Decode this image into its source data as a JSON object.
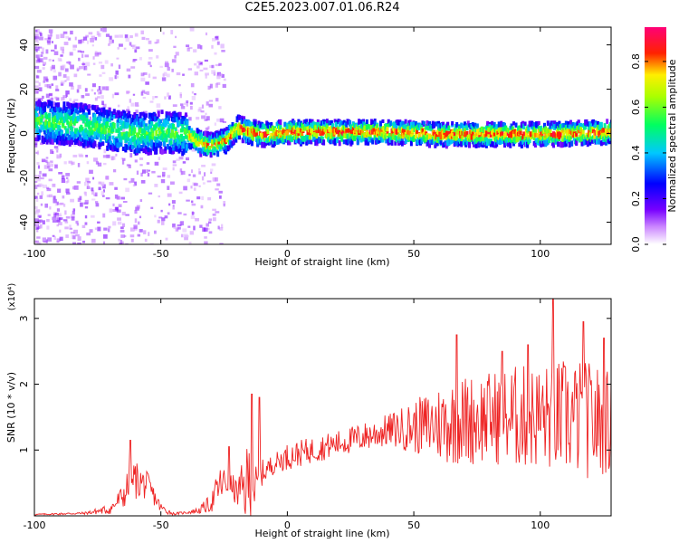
{
  "title": "C2E5.2023.007.01.06.R24",
  "chart_data": [
    {
      "type": "heatmap",
      "xlabel": "Height of straight line (km)",
      "ylabel": "Frequency (Hz)",
      "xlim": [
        -100,
        128
      ],
      "ylim": [
        -50,
        48
      ],
      "x_ticks": [
        "-100",
        "-50",
        "0",
        "50",
        "100"
      ],
      "y_ticks": [
        "40",
        "20",
        "0",
        "-20",
        "-40"
      ],
      "colorbar": {
        "label": "Normalized spectral amplitude",
        "range": [
          0,
          0.95
        ],
        "ticks": [
          "0.0",
          "0.2",
          "0.4",
          "0.6",
          "0.8"
        ],
        "colors": [
          "#ffffff",
          "#9900ff",
          "#0000ff",
          "#00ffff",
          "#00ff00",
          "#ffff00",
          "#ff0000",
          "#ff00aa"
        ]
      },
      "ridge": {
        "x": [
          -100,
          -90,
          -80,
          -70,
          -60,
          -50,
          -40,
          -35,
          -30,
          -25,
          -20,
          -15,
          -10,
          0,
          20,
          40,
          60,
          80,
          100,
          128
        ],
        "y": [
          6,
          5,
          4,
          2,
          0,
          1,
          0,
          -4,
          -5,
          -3,
          3,
          1,
          0,
          1,
          1,
          1,
          0,
          0,
          0,
          1
        ]
      }
    },
    {
      "type": "line",
      "xlabel": "Height of straight line (km)",
      "ylabel": "SNR (10 * v/v)",
      "y_multiplier": "(x10⁴)",
      "xlim": [
        -100,
        128
      ],
      "ylim": [
        0,
        3.3
      ],
      "x_ticks": [
        "-100",
        "-50",
        "0",
        "50",
        "100"
      ],
      "y_ticks": [
        "3",
        "2",
        "1"
      ],
      "series_color": "#ee2222",
      "envelope": {
        "x": [
          -100,
          -80,
          -70,
          -65,
          -62,
          -60,
          -55,
          -50,
          -45,
          -40,
          -35,
          -30,
          -27,
          -25,
          -22,
          -20,
          -17,
          -15,
          -12,
          -10,
          -5,
          0,
          10,
          20,
          30,
          40,
          50,
          60,
          70,
          80,
          90,
          100,
          110,
          120,
          128
        ],
        "mean": [
          0.02,
          0.04,
          0.1,
          0.3,
          0.5,
          0.55,
          0.45,
          0.12,
          0.03,
          0.05,
          0.08,
          0.2,
          0.45,
          0.5,
          0.45,
          0.35,
          0.4,
          0.55,
          0.4,
          0.65,
          0.8,
          0.9,
          1.0,
          1.1,
          1.2,
          1.3,
          1.35,
          1.4,
          1.45,
          1.5,
          1.5,
          1.5,
          1.5,
          1.45,
          1.4
        ],
        "amp": [
          0.01,
          0.02,
          0.08,
          0.2,
          0.35,
          0.3,
          0.2,
          0.08,
          0.02,
          0.02,
          0.05,
          0.15,
          0.3,
          0.25,
          0.2,
          0.2,
          0.5,
          0.7,
          0.3,
          0.2,
          0.15,
          0.2,
          0.2,
          0.2,
          0.22,
          0.25,
          0.4,
          0.6,
          0.7,
          0.7,
          0.8,
          0.8,
          0.9,
          0.9,
          0.8
        ]
      },
      "spikes": [
        {
          "x": -62,
          "y": 1.15
        },
        {
          "x": -23,
          "y": 1.05
        },
        {
          "x": -14,
          "y": 1.85
        },
        {
          "x": -11,
          "y": 1.8
        },
        {
          "x": 67,
          "y": 2.75
        },
        {
          "x": 85,
          "y": 2.5
        },
        {
          "x": 105,
          "y": 3.3
        },
        {
          "x": 117,
          "y": 2.95
        },
        {
          "x": 125,
          "y": 2.7
        },
        {
          "x": 95,
          "y": 2.6
        }
      ]
    }
  ]
}
